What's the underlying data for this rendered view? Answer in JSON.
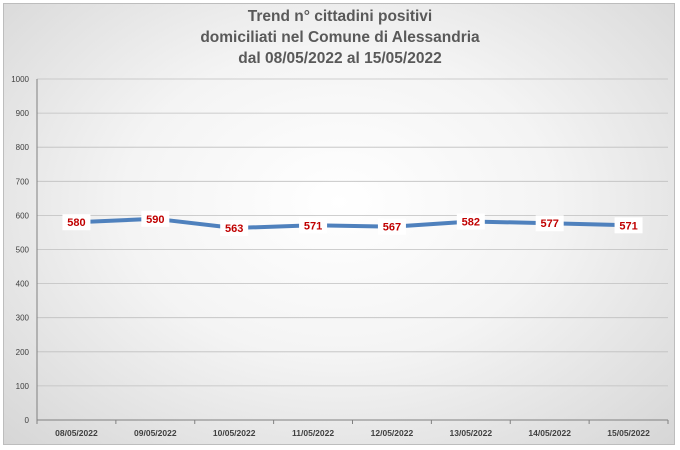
{
  "chart_data": {
    "type": "line",
    "title_lines": [
      "Trend n° cittadini positivi",
      "domiciliati nel Comune di Alessandria",
      "dal 08/05/2022 al 15/05/2022"
    ],
    "categories": [
      "08/05/2022",
      "09/05/2022",
      "10/05/2022",
      "11/05/2022",
      "12/05/2022",
      "13/05/2022",
      "14/05/2022",
      "15/05/2022"
    ],
    "values": [
      580,
      590,
      563,
      571,
      567,
      582,
      577,
      571
    ],
    "data_labels": [
      "580",
      "590",
      "563",
      "571",
      "567",
      "582",
      "577",
      "571"
    ],
    "ylim": [
      0,
      1000
    ],
    "yticks": [
      "0",
      "100",
      "200",
      "300",
      "400",
      "500",
      "600",
      "700",
      "800",
      "900",
      "1000"
    ],
    "xlabel": "",
    "ylabel": "",
    "grid": true,
    "legend": "none",
    "line_color": "#4f81bd",
    "label_color": "#c00000"
  }
}
